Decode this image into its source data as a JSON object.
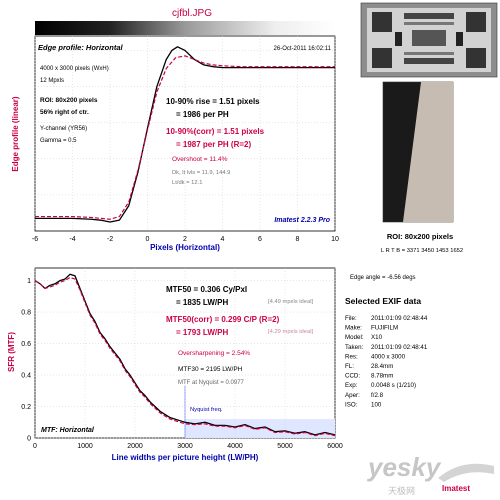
{
  "title": "cjfbl.JPG",
  "colors": {
    "edge_black": "#000000",
    "edge_corr": "#cc0044",
    "mtf_black": "#000000",
    "mtf_corr": "#cc0044",
    "roi_dark": "#1a1a1a",
    "roi_light": "#c7bcb2",
    "nyquist_fill": "#dfe6ff",
    "nyquist_line": "#7d8cff",
    "title_red": "#cc0044",
    "annot_blue": "#0000aa"
  },
  "edge_panel": {
    "heading": "Edge profile: Horizontal",
    "timestamp": "26-Oct-2011 16:02:11",
    "info": [
      "4000 x 3000 pixels (WxH)",
      "12 Mpxls",
      "ROI: 80x200 pixels",
      "56% right of ctr.",
      "Y-channel (YR56)",
      "Gamma = 0.5"
    ],
    "rise_line1": "10-90% rise = 1.51 pixels",
    "rise_line2": "= 1986 per PH",
    "corr_line1": "10-90%(corr) = 1.51 pixels",
    "corr_line2": "= 1987 per PH (R=2)",
    "overshoot": "Overshoot = 11.4%",
    "levels_line1": "Dk, lt lvls = 11.9, 144.9",
    "levels_line2": "Lt/dk = 12.1",
    "software": "Imatest 2.2.3 Pro"
  },
  "mtf_panel": {
    "heading": "MTF: Horizontal",
    "mtf50_line1": "MTF50 = 0.306 Cy/Pxl",
    "mtf50_line2": "= 1835 LW/PH",
    "mtf50_ideal": "[4.49 mpxls ideal]",
    "corr_line1": "MTF50(corr) = 0.299 C/P (R=2)",
    "corr_line2": "= 1793 LW/PH",
    "corr_ideal": "[4.29 mpxls ideal]",
    "oversharpening": "Oversharpening = 2.54%",
    "mtf30": "MTF30 = 2195 LW/PH",
    "nyquist_val": "MTF at Nyquist = 0.0977",
    "nyquist_label": "Nyquist freq."
  },
  "roi": {
    "caption": "ROI: 80x200 pixels",
    "coords": "L R T B = 3371 3450 1453 1652",
    "edge_angle": "Edge angle = -6.56 degs"
  },
  "exif": {
    "heading": "Selected EXIF data",
    "rows": [
      {
        "k": "File:",
        "v": "2011:01:09 02:48:44"
      },
      {
        "k": "Make:",
        "v": "FUJIFILM"
      },
      {
        "k": "Model:",
        "v": "X10"
      },
      {
        "k": "Taken:",
        "v": "2011:01:09 02:48:41"
      },
      {
        "k": "Res:",
        "v": "4000 x 3000"
      },
      {
        "k": "FL:",
        "v": "28.4mm"
      },
      {
        "k": "CCD:",
        "v": "8.78mm"
      },
      {
        "k": "Exp:",
        "v": "0.0048 s (1/210)"
      },
      {
        "k": "Aper:",
        "v": "f/2.8"
      },
      {
        "k": "ISO:",
        "v": "100"
      }
    ]
  },
  "watermark": {
    "main": "yesky",
    "sub": "天极网",
    "brand": "Imatest"
  },
  "chart_data": [
    {
      "type": "line",
      "title": "Edge profile: Horizontal",
      "xlabel": "Pixels (Horizontal)",
      "ylabel": "Edge profile (linear)",
      "xlim": [
        -6,
        10
      ],
      "ylim": [
        0,
        1.08
      ],
      "xticks": [
        "-6",
        "-4",
        "-2",
        "0",
        "2",
        "4",
        "6",
        "8",
        "10"
      ],
      "grid": true,
      "series": [
        {
          "style": "solid",
          "x": [
            -6,
            -5,
            -4,
            -3,
            -2.5,
            -2,
            -1.5,
            -1,
            -0.5,
            0,
            0.5,
            1,
            1.3,
            1.6,
            2,
            2.5,
            3,
            3.5,
            4,
            5,
            6,
            7,
            8,
            9,
            10
          ],
          "y": [
            0.07,
            0.07,
            0.07,
            0.065,
            0.06,
            0.05,
            0.06,
            0.14,
            0.33,
            0.57,
            0.8,
            0.95,
            1.0,
            1.02,
            1.0,
            0.95,
            0.92,
            0.91,
            0.905,
            0.905,
            0.905,
            0.905,
            0.905,
            0.905,
            0.905
          ]
        },
        {
          "style": "dashed",
          "x": [
            -6,
            -5,
            -4,
            -3,
            -2.5,
            -2,
            -1.5,
            -1,
            -0.5,
            0,
            0.5,
            1,
            1.5,
            2,
            2.5,
            3,
            3.5,
            4,
            5,
            6,
            7,
            8,
            9,
            10
          ],
          "y": [
            0.08,
            0.08,
            0.08,
            0.075,
            0.07,
            0.065,
            0.08,
            0.16,
            0.34,
            0.56,
            0.77,
            0.9,
            0.96,
            0.97,
            0.95,
            0.93,
            0.92,
            0.915,
            0.91,
            0.91,
            0.91,
            0.91,
            0.91,
            0.91
          ]
        }
      ]
    },
    {
      "type": "line",
      "title": "MTF: Horizontal",
      "xlabel": "Line widths per picture height (LW/PH)",
      "ylabel": "SFR (MTF)",
      "xlim": [
        0,
        6000
      ],
      "ylim": [
        0,
        1.08
      ],
      "xticks": [
        "0",
        "1000",
        "2000",
        "3000",
        "4000",
        "5000",
        "6000"
      ],
      "yticks": [
        "0",
        "0.2",
        "0.4",
        "0.6",
        "0.8",
        "1"
      ],
      "grid": true,
      "nyquist_x": 3000,
      "series": [
        {
          "style": "solid",
          "x": [
            0,
            100,
            200,
            300,
            400,
            500,
            600,
            700,
            800,
            900,
            1000,
            1100,
            1200,
            1300,
            1400,
            1500,
            1600,
            1700,
            1800,
            1900,
            2000,
            2100,
            2200,
            2300,
            2400,
            2500,
            2600,
            2700,
            2800,
            2900,
            3000,
            3200,
            3400,
            3600,
            3800,
            4000,
            4200,
            4400,
            4600,
            4800,
            5000,
            5200,
            5400,
            5600,
            5800,
            6000
          ],
          "y": [
            1.0,
            0.98,
            0.95,
            0.97,
            0.98,
            1.0,
            1.01,
            1.04,
            1.03,
            0.95,
            0.87,
            0.79,
            0.74,
            0.67,
            0.63,
            0.58,
            0.54,
            0.5,
            0.44,
            0.4,
            0.35,
            0.3,
            0.27,
            0.23,
            0.2,
            0.17,
            0.15,
            0.13,
            0.12,
            0.11,
            0.1,
            0.09,
            0.1,
            0.08,
            0.08,
            0.07,
            0.085,
            0.06,
            0.07,
            0.04,
            0.045,
            0.03,
            0.04,
            0.02,
            0.035,
            0.02
          ]
        },
        {
          "style": "dashed",
          "x": [
            0,
            100,
            200,
            300,
            400,
            500,
            600,
            700,
            800,
            900,
            1000,
            1100,
            1200,
            1300,
            1400,
            1500,
            1600,
            1700,
            1800,
            1900,
            2000,
            2100,
            2200,
            2300,
            2400,
            2500,
            2600,
            2700,
            2800,
            2900,
            3000,
            3200,
            3400,
            3600,
            3800,
            4000,
            4200,
            4400,
            4600,
            4800,
            5000,
            5200,
            5400,
            5600,
            5800,
            6000
          ],
          "y": [
            1.0,
            0.98,
            0.95,
            0.96,
            0.97,
            0.99,
            1.0,
            1.02,
            1.01,
            0.94,
            0.86,
            0.78,
            0.73,
            0.66,
            0.62,
            0.57,
            0.53,
            0.49,
            0.43,
            0.39,
            0.34,
            0.29,
            0.26,
            0.22,
            0.19,
            0.16,
            0.14,
            0.12,
            0.11,
            0.1,
            0.09,
            0.085,
            0.09,
            0.075,
            0.075,
            0.065,
            0.08,
            0.055,
            0.065,
            0.035,
            0.04,
            0.025,
            0.035,
            0.015,
            0.03,
            0.015
          ]
        }
      ]
    }
  ]
}
